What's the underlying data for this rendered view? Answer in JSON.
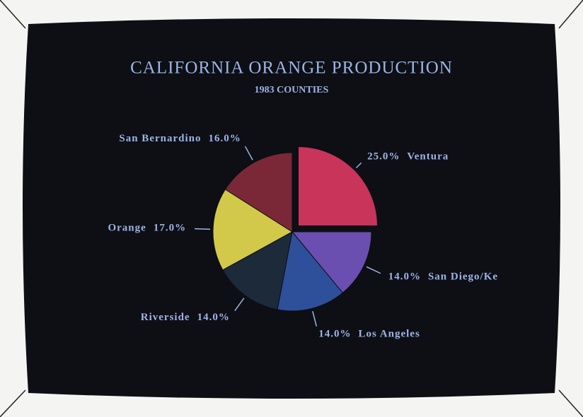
{
  "chart_data": {
    "type": "pie",
    "title": "CALIFORNIA ORANGE PRODUCTION",
    "subtitle": "1983 COUNTIES",
    "categories": [
      "Ventura",
      "San Diego/Ke",
      "Los Angeles",
      "Riverside",
      "Orange",
      "San Bernardino"
    ],
    "values": [
      25.0,
      14.0,
      14.0,
      14.0,
      17.0,
      16.0
    ],
    "value_labels": [
      "25.0%",
      "14.0%",
      "14.0%",
      "14.0%",
      "17.0%",
      "16.0%"
    ],
    "colors": [
      "#c8345a",
      "#6a4fb0",
      "#2e4f9a",
      "#1c2a3a",
      "#d2c94a",
      "#7a2838"
    ],
    "explode": [
      true,
      false,
      false,
      false,
      false,
      false
    ]
  }
}
